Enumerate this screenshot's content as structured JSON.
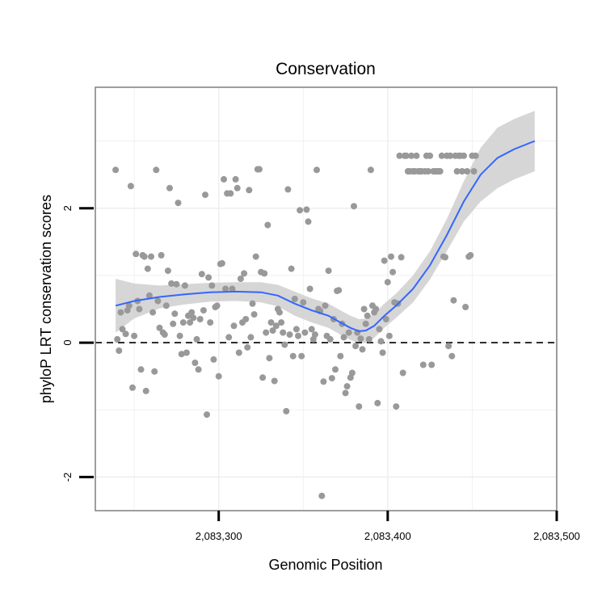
{
  "chart_data": {
    "type": "scatter",
    "title": "Conservation",
    "xlabel": "Genomic Position",
    "ylabel": "phyloP LRT conservation scores",
    "xlim": [
      2083227,
      2083500
    ],
    "ylim": [
      -2.5,
      3.8
    ],
    "x_ticks": [
      2083300,
      2083400,
      2083500
    ],
    "x_tick_labels": [
      "2,083,300",
      "2,083,400",
      "2,083,500"
    ],
    "y_ticks": [
      -2,
      0,
      2
    ],
    "y_tick_labels": [
      "-2",
      "0",
      "2"
    ],
    "grid": true,
    "legend": "none",
    "reference_line": {
      "y": 0,
      "style": "dashed"
    },
    "colors": {
      "points": "#999999",
      "smooth": "#3366ff",
      "band": "#cccccc",
      "grid": "#eeeeee",
      "border": "#7f7f7f"
    },
    "points": [
      [
        2083239,
        2.57
      ],
      [
        2083240,
        0.05
      ],
      [
        2083241,
        -0.12
      ],
      [
        2083242,
        0.45
      ],
      [
        2083243,
        0.2
      ],
      [
        2083245,
        0.13
      ],
      [
        2083246,
        0.48
      ],
      [
        2083247,
        0.55
      ],
      [
        2083248,
        2.33
      ],
      [
        2083249,
        -0.67
      ],
      [
        2083250,
        0.1
      ],
      [
        2083251,
        1.32
      ],
      [
        2083252,
        0.62
      ],
      [
        2083253,
        0.5
      ],
      [
        2083254,
        -0.4
      ],
      [
        2083255,
        1.3
      ],
      [
        2083256,
        1.28
      ],
      [
        2083257,
        -0.72
      ],
      [
        2083258,
        1.1
      ],
      [
        2083259,
        0.7
      ],
      [
        2083260,
        1.28
      ],
      [
        2083261,
        0.45
      ],
      [
        2083262,
        -0.43
      ],
      [
        2083263,
        2.57
      ],
      [
        2083264,
        0.62
      ],
      [
        2083265,
        0.22
      ],
      [
        2083266,
        1.3
      ],
      [
        2083267,
        0.15
      ],
      [
        2083268,
        0.12
      ],
      [
        2083269,
        0.55
      ],
      [
        2083270,
        1.07
      ],
      [
        2083271,
        2.3
      ],
      [
        2083272,
        0.88
      ],
      [
        2083273,
        0.28
      ],
      [
        2083274,
        0.43
      ],
      [
        2083275,
        0.87
      ],
      [
        2083276,
        2.08
      ],
      [
        2083277,
        0.1
      ],
      [
        2083278,
        -0.17
      ],
      [
        2083279,
        0.3
      ],
      [
        2083280,
        0.85
      ],
      [
        2083281,
        -0.15
      ],
      [
        2083282,
        0.4
      ],
      [
        2083283,
        0.3
      ],
      [
        2083284,
        0.45
      ],
      [
        2083285,
        0.37
      ],
      [
        2083286,
        -0.3
      ],
      [
        2083287,
        0.05
      ],
      [
        2083288,
        -0.4
      ],
      [
        2083289,
        0.35
      ],
      [
        2083290,
        1.02
      ],
      [
        2083291,
        0.48
      ],
      [
        2083292,
        2.2
      ],
      [
        2083293,
        -1.07
      ],
      [
        2083294,
        0.97
      ],
      [
        2083295,
        0.3
      ],
      [
        2083296,
        0.85
      ],
      [
        2083297,
        -0.25
      ],
      [
        2083298,
        0.53
      ],
      [
        2083299,
        0.55
      ],
      [
        2083300,
        -0.5
      ],
      [
        2083301,
        1.17
      ],
      [
        2083302,
        1.18
      ],
      [
        2083303,
        2.43
      ],
      [
        2083304,
        0.8
      ],
      [
        2083305,
        2.22
      ],
      [
        2083306,
        0.08
      ],
      [
        2083307,
        2.22
      ],
      [
        2083308,
        0.8
      ],
      [
        2083309,
        0.25
      ],
      [
        2083310,
        2.43
      ],
      [
        2083311,
        2.3
      ],
      [
        2083312,
        -0.15
      ],
      [
        2083313,
        0.95
      ],
      [
        2083314,
        0.3
      ],
      [
        2083315,
        1.03
      ],
      [
        2083316,
        0.35
      ],
      [
        2083317,
        -0.07
      ],
      [
        2083318,
        2.27
      ],
      [
        2083319,
        0.08
      ],
      [
        2083320,
        0.58
      ],
      [
        2083321,
        0.42
      ],
      [
        2083322,
        1.28
      ],
      [
        2083323,
        2.58
      ],
      [
        2083324,
        2.58
      ],
      [
        2083325,
        1.05
      ],
      [
        2083326,
        -0.52
      ],
      [
        2083327,
        1.03
      ],
      [
        2083328,
        0.15
      ],
      [
        2083329,
        1.75
      ],
      [
        2083330,
        -0.23
      ],
      [
        2083331,
        0.3
      ],
      [
        2083332,
        0.18
      ],
      [
        2083333,
        -0.57
      ],
      [
        2083334,
        0.25
      ],
      [
        2083335,
        0.5
      ],
      [
        2083336,
        0.45
      ],
      [
        2083337,
        0.3
      ],
      [
        2083338,
        0.15
      ],
      [
        2083339,
        -0.03
      ],
      [
        2083340,
        -1.02
      ],
      [
        2083341,
        2.28
      ],
      [
        2083342,
        0.12
      ],
      [
        2083343,
        1.1
      ],
      [
        2083344,
        -0.2
      ],
      [
        2083345,
        0.65
      ],
      [
        2083346,
        0.2
      ],
      [
        2083347,
        0.1
      ],
      [
        2083348,
        1.97
      ],
      [
        2083349,
        -0.2
      ],
      [
        2083350,
        0.6
      ],
      [
        2083351,
        0.15
      ],
      [
        2083352,
        1.98
      ],
      [
        2083353,
        1.8
      ],
      [
        2083354,
        0.8
      ],
      [
        2083355,
        0.2
      ],
      [
        2083356,
        0.05
      ],
      [
        2083357,
        0.12
      ],
      [
        2083358,
        2.57
      ],
      [
        2083359,
        0.5
      ],
      [
        2083360,
        0.47
      ],
      [
        2083361,
        -2.28
      ],
      [
        2083362,
        -0.58
      ],
      [
        2083363,
        0.55
      ],
      [
        2083364,
        0.1
      ],
      [
        2083365,
        1.07
      ],
      [
        2083366,
        0.05
      ],
      [
        2083367,
        -0.53
      ],
      [
        2083368,
        0.35
      ],
      [
        2083369,
        -0.4
      ],
      [
        2083370,
        0.77
      ],
      [
        2083371,
        0.78
      ],
      [
        2083372,
        -0.2
      ],
      [
        2083373,
        0.28
      ],
      [
        2083374,
        0.08
      ],
      [
        2083375,
        -0.75
      ],
      [
        2083376,
        -0.65
      ],
      [
        2083377,
        0.15
      ],
      [
        2083378,
        -0.52
      ],
      [
        2083379,
        -0.45
      ],
      [
        2083380,
        2.03
      ],
      [
        2083381,
        -0.05
      ],
      [
        2083382,
        0.15
      ],
      [
        2083383,
        -0.95
      ],
      [
        2083384,
        0.06
      ],
      [
        2083385,
        -0.1
      ],
      [
        2083386,
        0.5
      ],
      [
        2083387,
        0.28
      ],
      [
        2083388,
        0.4
      ],
      [
        2083389,
        0.05
      ],
      [
        2083390,
        2.57
      ],
      [
        2083391,
        0.55
      ],
      [
        2083392,
        0.45
      ],
      [
        2083393,
        0.5
      ],
      [
        2083394,
        -0.9
      ],
      [
        2083395,
        0.2
      ],
      [
        2083396,
        0.02
      ],
      [
        2083397,
        -0.15
      ],
      [
        2083398,
        1.22
      ],
      [
        2083399,
        0.35
      ],
      [
        2083400,
        0.9
      ],
      [
        2083401,
        0.1
      ],
      [
        2083402,
        1.28
      ],
      [
        2083403,
        1.05
      ],
      [
        2083404,
        0.6
      ],
      [
        2083405,
        -0.95
      ],
      [
        2083406,
        0.58
      ],
      [
        2083407,
        2.78
      ],
      [
        2083408,
        1.27
      ],
      [
        2083409,
        -0.45
      ],
      [
        2083410,
        2.78
      ],
      [
        2083411,
        2.78
      ],
      [
        2083412,
        2.55
      ],
      [
        2083413,
        2.55
      ],
      [
        2083414,
        2.78
      ],
      [
        2083415,
        2.55
      ],
      [
        2083416,
        2.55
      ],
      [
        2083417,
        2.78
      ],
      [
        2083418,
        2.55
      ],
      [
        2083419,
        2.55
      ],
      [
        2083420,
        2.55
      ],
      [
        2083421,
        -0.33
      ],
      [
        2083422,
        2.55
      ],
      [
        2083423,
        2.78
      ],
      [
        2083424,
        2.55
      ],
      [
        2083425,
        2.78
      ],
      [
        2083426,
        -0.33
      ],
      [
        2083427,
        2.55
      ],
      [
        2083428,
        2.55
      ],
      [
        2083429,
        2.55
      ],
      [
        2083430,
        2.55
      ],
      [
        2083431,
        2.55
      ],
      [
        2083432,
        2.78
      ],
      [
        2083433,
        1.28
      ],
      [
        2083434,
        1.27
      ],
      [
        2083435,
        2.78
      ],
      [
        2083436,
        -0.05
      ],
      [
        2083437,
        2.78
      ],
      [
        2083438,
        -0.2
      ],
      [
        2083439,
        0.63
      ],
      [
        2083440,
        2.78
      ],
      [
        2083441,
        2.55
      ],
      [
        2083442,
        2.78
      ],
      [
        2083443,
        2.78
      ],
      [
        2083444,
        2.55
      ],
      [
        2083445,
        2.78
      ],
      [
        2083446,
        0.53
      ],
      [
        2083447,
        2.55
      ],
      [
        2083448,
        1.28
      ],
      [
        2083449,
        1.3
      ],
      [
        2083450,
        2.78
      ],
      [
        2083451,
        2.55
      ],
      [
        2083452,
        2.78
      ]
    ],
    "smooth_line": [
      [
        2083239,
        0.55
      ],
      [
        2083250,
        0.62
      ],
      [
        2083265,
        0.68
      ],
      [
        2083280,
        0.72
      ],
      [
        2083295,
        0.75
      ],
      [
        2083310,
        0.76
      ],
      [
        2083325,
        0.75
      ],
      [
        2083335,
        0.7
      ],
      [
        2083345,
        0.58
      ],
      [
        2083355,
        0.48
      ],
      [
        2083365,
        0.4
      ],
      [
        2083372,
        0.3
      ],
      [
        2083378,
        0.22
      ],
      [
        2083383,
        0.17
      ],
      [
        2083387,
        0.18
      ],
      [
        2083392,
        0.25
      ],
      [
        2083398,
        0.4
      ],
      [
        2083405,
        0.55
      ],
      [
        2083415,
        0.8
      ],
      [
        2083425,
        1.15
      ],
      [
        2083435,
        1.6
      ],
      [
        2083445,
        2.1
      ],
      [
        2083455,
        2.5
      ],
      [
        2083465,
        2.75
      ],
      [
        2083475,
        2.88
      ],
      [
        2083487,
        3.0
      ]
    ],
    "smooth_band_upper": [
      [
        2083239,
        0.95
      ],
      [
        2083250,
        0.88
      ],
      [
        2083265,
        0.85
      ],
      [
        2083280,
        0.87
      ],
      [
        2083295,
        0.89
      ],
      [
        2083310,
        0.9
      ],
      [
        2083325,
        0.9
      ],
      [
        2083335,
        0.86
      ],
      [
        2083345,
        0.76
      ],
      [
        2083355,
        0.66
      ],
      [
        2083365,
        0.58
      ],
      [
        2083372,
        0.48
      ],
      [
        2083378,
        0.4
      ],
      [
        2083383,
        0.35
      ],
      [
        2083387,
        0.36
      ],
      [
        2083392,
        0.43
      ],
      [
        2083398,
        0.58
      ],
      [
        2083405,
        0.73
      ],
      [
        2083415,
        1.0
      ],
      [
        2083425,
        1.36
      ],
      [
        2083435,
        1.84
      ],
      [
        2083445,
        2.4
      ],
      [
        2083455,
        2.9
      ],
      [
        2083465,
        3.2
      ],
      [
        2083475,
        3.33
      ],
      [
        2083487,
        3.45
      ]
    ],
    "smooth_band_lower": [
      [
        2083239,
        0.15
      ],
      [
        2083250,
        0.36
      ],
      [
        2083265,
        0.51
      ],
      [
        2083280,
        0.57
      ],
      [
        2083295,
        0.61
      ],
      [
        2083310,
        0.62
      ],
      [
        2083325,
        0.6
      ],
      [
        2083335,
        0.54
      ],
      [
        2083345,
        0.4
      ],
      [
        2083355,
        0.3
      ],
      [
        2083365,
        0.22
      ],
      [
        2083372,
        0.12
      ],
      [
        2083378,
        0.04
      ],
      [
        2083383,
        -0.01
      ],
      [
        2083387,
        0.0
      ],
      [
        2083392,
        0.07
      ],
      [
        2083398,
        0.22
      ],
      [
        2083405,
        0.37
      ],
      [
        2083415,
        0.6
      ],
      [
        2083425,
        0.94
      ],
      [
        2083435,
        1.36
      ],
      [
        2083445,
        1.8
      ],
      [
        2083455,
        2.1
      ],
      [
        2083465,
        2.3
      ],
      [
        2083475,
        2.43
      ],
      [
        2083487,
        2.55
      ]
    ]
  }
}
